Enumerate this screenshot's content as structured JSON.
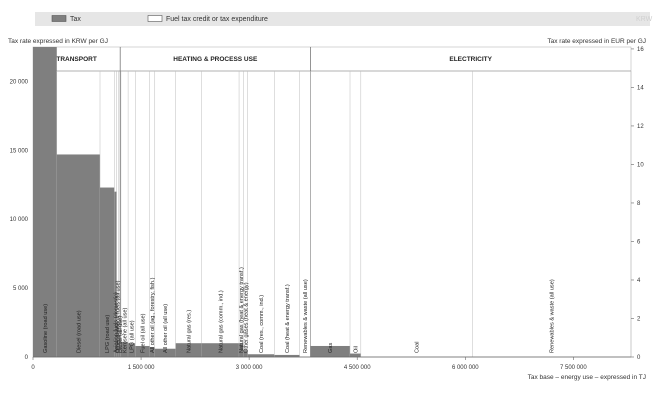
{
  "chart_data": {
    "type": "bar",
    "variable_width": true,
    "legend": {
      "placement": "top",
      "items": [
        {
          "name": "Tax",
          "color": "#7f7f7f"
        },
        {
          "name": "Fuel tax credit or tax expenditure",
          "color": "#ffffff"
        }
      ],
      "faint_label": "KRW"
    },
    "ylabel_left": "Tax rate expressed in KRW per GJ",
    "ylabel_right": "Tax rate expressed in EUR per GJ",
    "xlabel": "Tax base – energy use – expressed in TJ",
    "x_ticks": [
      {
        "v": 0,
        "label": "0"
      },
      {
        "v": 1500000,
        "label": "1 500 000"
      },
      {
        "v": 3000000,
        "label": "3 000 000"
      },
      {
        "v": 4500000,
        "label": "4 500 000"
      },
      {
        "v": 6000000,
        "label": "6 000 000"
      },
      {
        "v": 7500000,
        "label": "7 500 000"
      }
    ],
    "y_left_ticks": [
      {
        "v": 0,
        "label": "0"
      },
      {
        "v": 5000,
        "label": "5 000"
      },
      {
        "v": 10000,
        "label": "10 000"
      },
      {
        "v": 15000,
        "label": "15 000"
      },
      {
        "v": 20000,
        "label": "20 000"
      }
    ],
    "y_right_ticks": [
      {
        "v": 0,
        "label": "0"
      },
      {
        "v": 2,
        "label": "2"
      },
      {
        "v": 4,
        "label": "4"
      },
      {
        "v": 6,
        "label": "6"
      },
      {
        "v": 8,
        "label": "8"
      },
      {
        "v": 10,
        "label": "10"
      },
      {
        "v": 12,
        "label": "12"
      },
      {
        "v": 14,
        "label": "14"
      },
      {
        "v": 16,
        "label": "16"
      }
    ],
    "xlim": [
      0,
      8300000
    ],
    "ylim_left": [
      0,
      22500
    ],
    "ylim_right": [
      0,
      16.1
    ],
    "sectors": [
      {
        "name": "TRANSPORT",
        "start": 0,
        "end": 1210000
      },
      {
        "name": "HEATING & PROCESS USE",
        "start": 1210000,
        "end": 3850000
      },
      {
        "name": "ELECTRICITY",
        "start": 3850000,
        "end": 8300000
      }
    ],
    "bars": [
      {
        "label": "Gasoline (road use)",
        "start": 0,
        "width": 330000,
        "value": 22500
      },
      {
        "label": "Diesel (road use)",
        "start": 330000,
        "width": 600000,
        "value": 14700
      },
      {
        "label": "LPG (road use)",
        "start": 930000,
        "width": 200000,
        "value": 12300
      },
      {
        "label": "Aviation fuels (domestic)",
        "start": 1130000,
        "width": 30000,
        "value": 12000
      },
      {
        "label": "Other transport fuels (all use)",
        "start": 1160000,
        "width": 30000,
        "value": 2500
      },
      {
        "label": "Diesel (all use)",
        "start": 1190000,
        "width": 30000,
        "value": 1600
      },
      {
        "label": "Kerosene (all use)",
        "start": 1220000,
        "width": 100000,
        "value": 1100
      },
      {
        "label": "LPG (all use)",
        "start": 1320000,
        "width": 100000,
        "value": 1000
      },
      {
        "label": "Fuel oil (all use)",
        "start": 1420000,
        "width": 200000,
        "value": 800
      },
      {
        "label": "All other oil (ag., forestry, fish.)",
        "start": 1620000,
        "width": 70000,
        "value": 700
      },
      {
        "label": "All other oil (all use)",
        "start": 1690000,
        "width": 290000,
        "value": 600
      },
      {
        "label": "Natural gas (res.)",
        "start": 1980000,
        "width": 360000,
        "value": 1000
      },
      {
        "label": "Natural gas (comm., ind.)",
        "start": 2340000,
        "width": 520000,
        "value": 1000
      },
      {
        "label": "Natural gas (heat & energy transf.)",
        "start": 2860000,
        "width": 60000,
        "value": 1000
      },
      {
        "label": "Other gases (heat & energy)",
        "start": 2920000,
        "width": 60000,
        "value": 500
      },
      {
        "label": "Coal (res., comm., ind.)",
        "start": 2980000,
        "width": 370000,
        "value": 200
      },
      {
        "label": "Coal (heat & energy transf.)",
        "start": 3350000,
        "width": 350000,
        "value": 150
      },
      {
        "label": "Renewables & waste (all use)",
        "start": 3700000,
        "width": 150000,
        "value": 0
      },
      {
        "label": "Gas",
        "start": 3850000,
        "width": 550000,
        "value": 800
      },
      {
        "label": "Oil",
        "start": 4400000,
        "width": 150000,
        "value": 250
      },
      {
        "label": "Coal",
        "start": 4550000,
        "width": 1550000,
        "value": 0
      },
      {
        "label": "Renewables & waste (all use)",
        "start": 6100000,
        "width": 2200000,
        "value": 0
      }
    ]
  }
}
